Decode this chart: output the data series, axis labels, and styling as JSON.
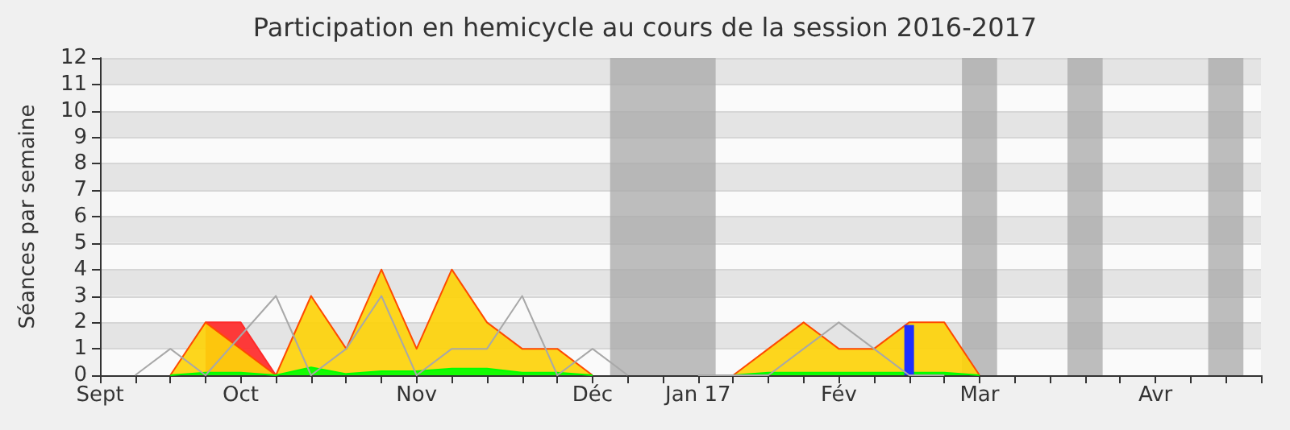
{
  "chart_data": {
    "type": "area",
    "title": "Participation en hemicycle au cours de la session 2016-2017",
    "ylabel": "Séances par semaine",
    "categories": [
      "Sept",
      null,
      null,
      null,
      "Oct",
      null,
      null,
      null,
      null,
      "Nov",
      null,
      null,
      null,
      null,
      "Déc",
      null,
      null,
      "Jan 17",
      null,
      null,
      null,
      "Fév",
      null,
      null,
      null,
      "Mar",
      null,
      null,
      null,
      null,
      "Avr",
      null,
      null,
      null
    ],
    "ylim": [
      0,
      12
    ],
    "yticks": [
      0,
      1,
      2,
      3,
      4,
      5,
      6,
      7,
      8,
      9,
      10,
      11,
      12
    ],
    "grid": "y",
    "series": [
      {
        "color": "#ff2a2a",
        "values": [
          null,
          null,
          null,
          2,
          2,
          0,
          null,
          null,
          null,
          null,
          null,
          null,
          null,
          null,
          null,
          null,
          null,
          null,
          null,
          null,
          null,
          null,
          null,
          null,
          null,
          null,
          null,
          null,
          null,
          null,
          null,
          null,
          null,
          null
        ]
      },
      {
        "color": "#fdd20a",
        "values": [
          null,
          null,
          0,
          2,
          1,
          0,
          3,
          1,
          4,
          1,
          4,
          2,
          1,
          1,
          0,
          null,
          null,
          null,
          0,
          1,
          2,
          1,
          1,
          2,
          2,
          0,
          null,
          null,
          null,
          null,
          null,
          null,
          null,
          null
        ]
      },
      {
        "type": "line",
        "color": "#a8a8a8",
        "values": [
          null,
          0,
          1,
          0,
          1.5,
          3,
          0,
          1,
          3,
          0,
          1,
          1,
          3,
          0,
          1,
          0,
          null,
          0,
          0,
          0,
          1,
          2,
          1,
          0,
          0,
          null,
          null,
          null,
          null,
          null,
          null,
          null,
          null,
          null
        ]
      },
      {
        "color": "#00ff00",
        "values": [
          null,
          null,
          0,
          0.1,
          0.1,
          0,
          0.3,
          0.05,
          0.15,
          0.15,
          0.25,
          0.25,
          0.1,
          0.1,
          0,
          null,
          null,
          null,
          0,
          0.1,
          0.1,
          0.1,
          0.1,
          0.1,
          0.1,
          0,
          null,
          null,
          null,
          null,
          null,
          null,
          null,
          null
        ]
      },
      {
        "type": "bar",
        "color": "#1f2fff",
        "values": [
          null,
          null,
          null,
          null,
          null,
          null,
          null,
          null,
          null,
          null,
          null,
          null,
          null,
          null,
          null,
          null,
          null,
          null,
          null,
          null,
          null,
          null,
          null,
          1.9,
          null,
          null,
          null,
          null,
          null,
          null,
          null,
          null,
          null,
          null
        ]
      }
    ]
  }
}
